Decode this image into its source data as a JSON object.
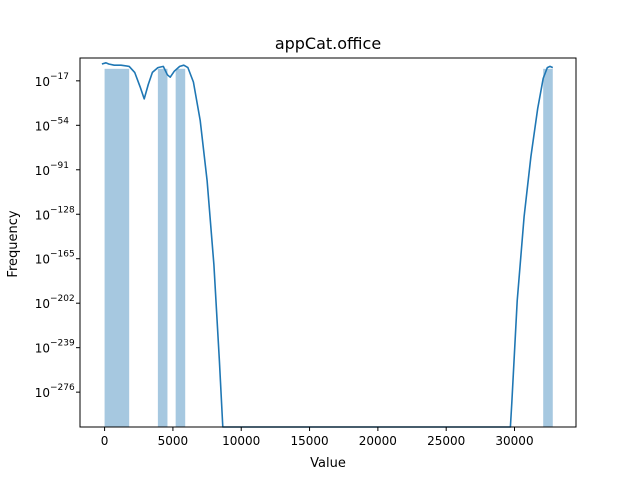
{
  "chart_data": {
    "type": "bar",
    "title": "appCat.office",
    "xlabel": "Value",
    "ylabel": "Frequency",
    "x_scale": "linear",
    "y_scale": "log",
    "xlim": [
      -1800,
      34500
    ],
    "ylim_exponent": [
      -305,
      2
    ],
    "x_ticks": [
      0,
      5000,
      10000,
      15000,
      20000,
      25000,
      30000
    ],
    "x_tick_labels": [
      "0",
      "5000",
      "10000",
      "15000",
      "20000",
      "25000",
      "30000"
    ],
    "y_tick_exponents": [
      -17,
      -54,
      -91,
      -128,
      -165,
      -202,
      -239,
      -276
    ],
    "y_tick_labels": [
      "10",
      "10",
      "10",
      "10",
      "10",
      "10",
      "10",
      "10"
    ],
    "y_tick_exponent_labels": [
      "−17",
      "−54",
      "−91",
      "−128",
      "−165",
      "−202",
      "−239",
      "−276"
    ],
    "histogram": {
      "color": "#a6c8e0",
      "bins": [
        {
          "x0": 0,
          "x1": 1800,
          "exp": -7
        },
        {
          "x0": 3900,
          "x1": 4600,
          "exp": -7
        },
        {
          "x0": 5200,
          "x1": 5900,
          "exp": -7
        },
        {
          "x0": 32100,
          "x1": 32800,
          "exp": -7
        }
      ]
    },
    "kde": {
      "color": "#1f77b4",
      "points": [
        [
          -200,
          -3
        ],
        [
          100,
          -2
        ],
        [
          300,
          -3
        ],
        [
          700,
          -4
        ],
        [
          1200,
          -4
        ],
        [
          1800,
          -5
        ],
        [
          2200,
          -10
        ],
        [
          2600,
          -22
        ],
        [
          2900,
          -32
        ],
        [
          3200,
          -20
        ],
        [
          3500,
          -10
        ],
        [
          3900,
          -6
        ],
        [
          4300,
          -5
        ],
        [
          4600,
          -12
        ],
        [
          4800,
          -14
        ],
        [
          5100,
          -9
        ],
        [
          5500,
          -5
        ],
        [
          5800,
          -4
        ],
        [
          6100,
          -6
        ],
        [
          6500,
          -18
        ],
        [
          7000,
          -50
        ],
        [
          7500,
          -100
        ],
        [
          8000,
          -170
        ],
        [
          8400,
          -250
        ],
        [
          8650,
          -305
        ],
        [
          29700,
          -305
        ],
        [
          29800,
          -285
        ],
        [
          30200,
          -200
        ],
        [
          30700,
          -130
        ],
        [
          31200,
          -80
        ],
        [
          31700,
          -40
        ],
        [
          32100,
          -15
        ],
        [
          32400,
          -6
        ],
        [
          32600,
          -5
        ],
        [
          32800,
          -6
        ]
      ]
    }
  }
}
